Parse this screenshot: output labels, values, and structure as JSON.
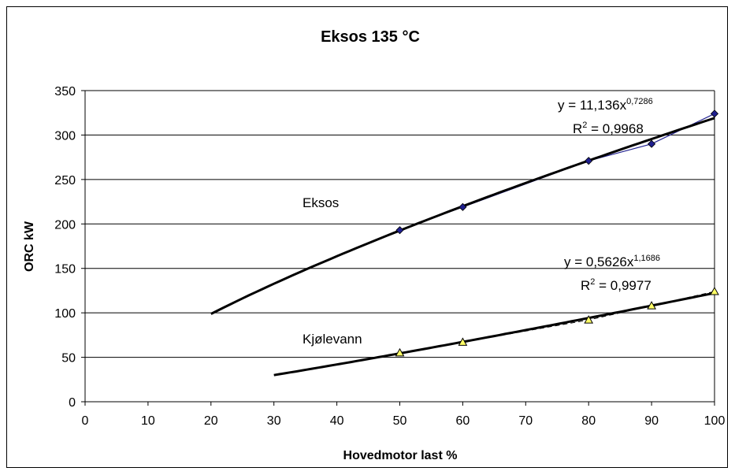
{
  "chart_data": {
    "type": "scatter",
    "title": "Eksos 135 °C",
    "xlabel": "Hovedmotor last %",
    "ylabel": "ORC kW",
    "xlim": [
      0,
      100
    ],
    "ylim": [
      0,
      350
    ],
    "x_ticks": [
      0,
      10,
      20,
      30,
      40,
      50,
      60,
      70,
      80,
      90,
      100
    ],
    "y_ticks": [
      0,
      50,
      100,
      150,
      200,
      250,
      300,
      350
    ],
    "grid": "horizontal",
    "series": [
      {
        "name": "Eksos",
        "marker": "diamond",
        "color": "#1f1f8f",
        "x": [
          50,
          60,
          80,
          90,
          100
        ],
        "y": [
          193,
          219,
          271,
          290,
          324
        ],
        "trendline": {
          "type": "power",
          "coef": 11.136,
          "exp": 0.7286,
          "x_range": [
            20,
            100
          ],
          "equation": "y = 11,136x",
          "exponent_label": "0,7286",
          "r2_prefix": "R",
          "r2_value": " = 0,9968"
        }
      },
      {
        "name": "Kjølevann",
        "marker": "triangle",
        "color": "#ffff66",
        "x": [
          50,
          60,
          80,
          90,
          100
        ],
        "y": [
          55,
          67,
          92,
          108,
          124
        ],
        "trendline": {
          "type": "power",
          "coef": 0.5626,
          "exp": 1.1686,
          "x_range": [
            30,
            100
          ],
          "equation": "y = 0,5626x",
          "exponent_label": "1,1686",
          "r2_prefix": "R",
          "r2_value": " = 0,9977"
        }
      }
    ],
    "superscript_2": "2"
  }
}
